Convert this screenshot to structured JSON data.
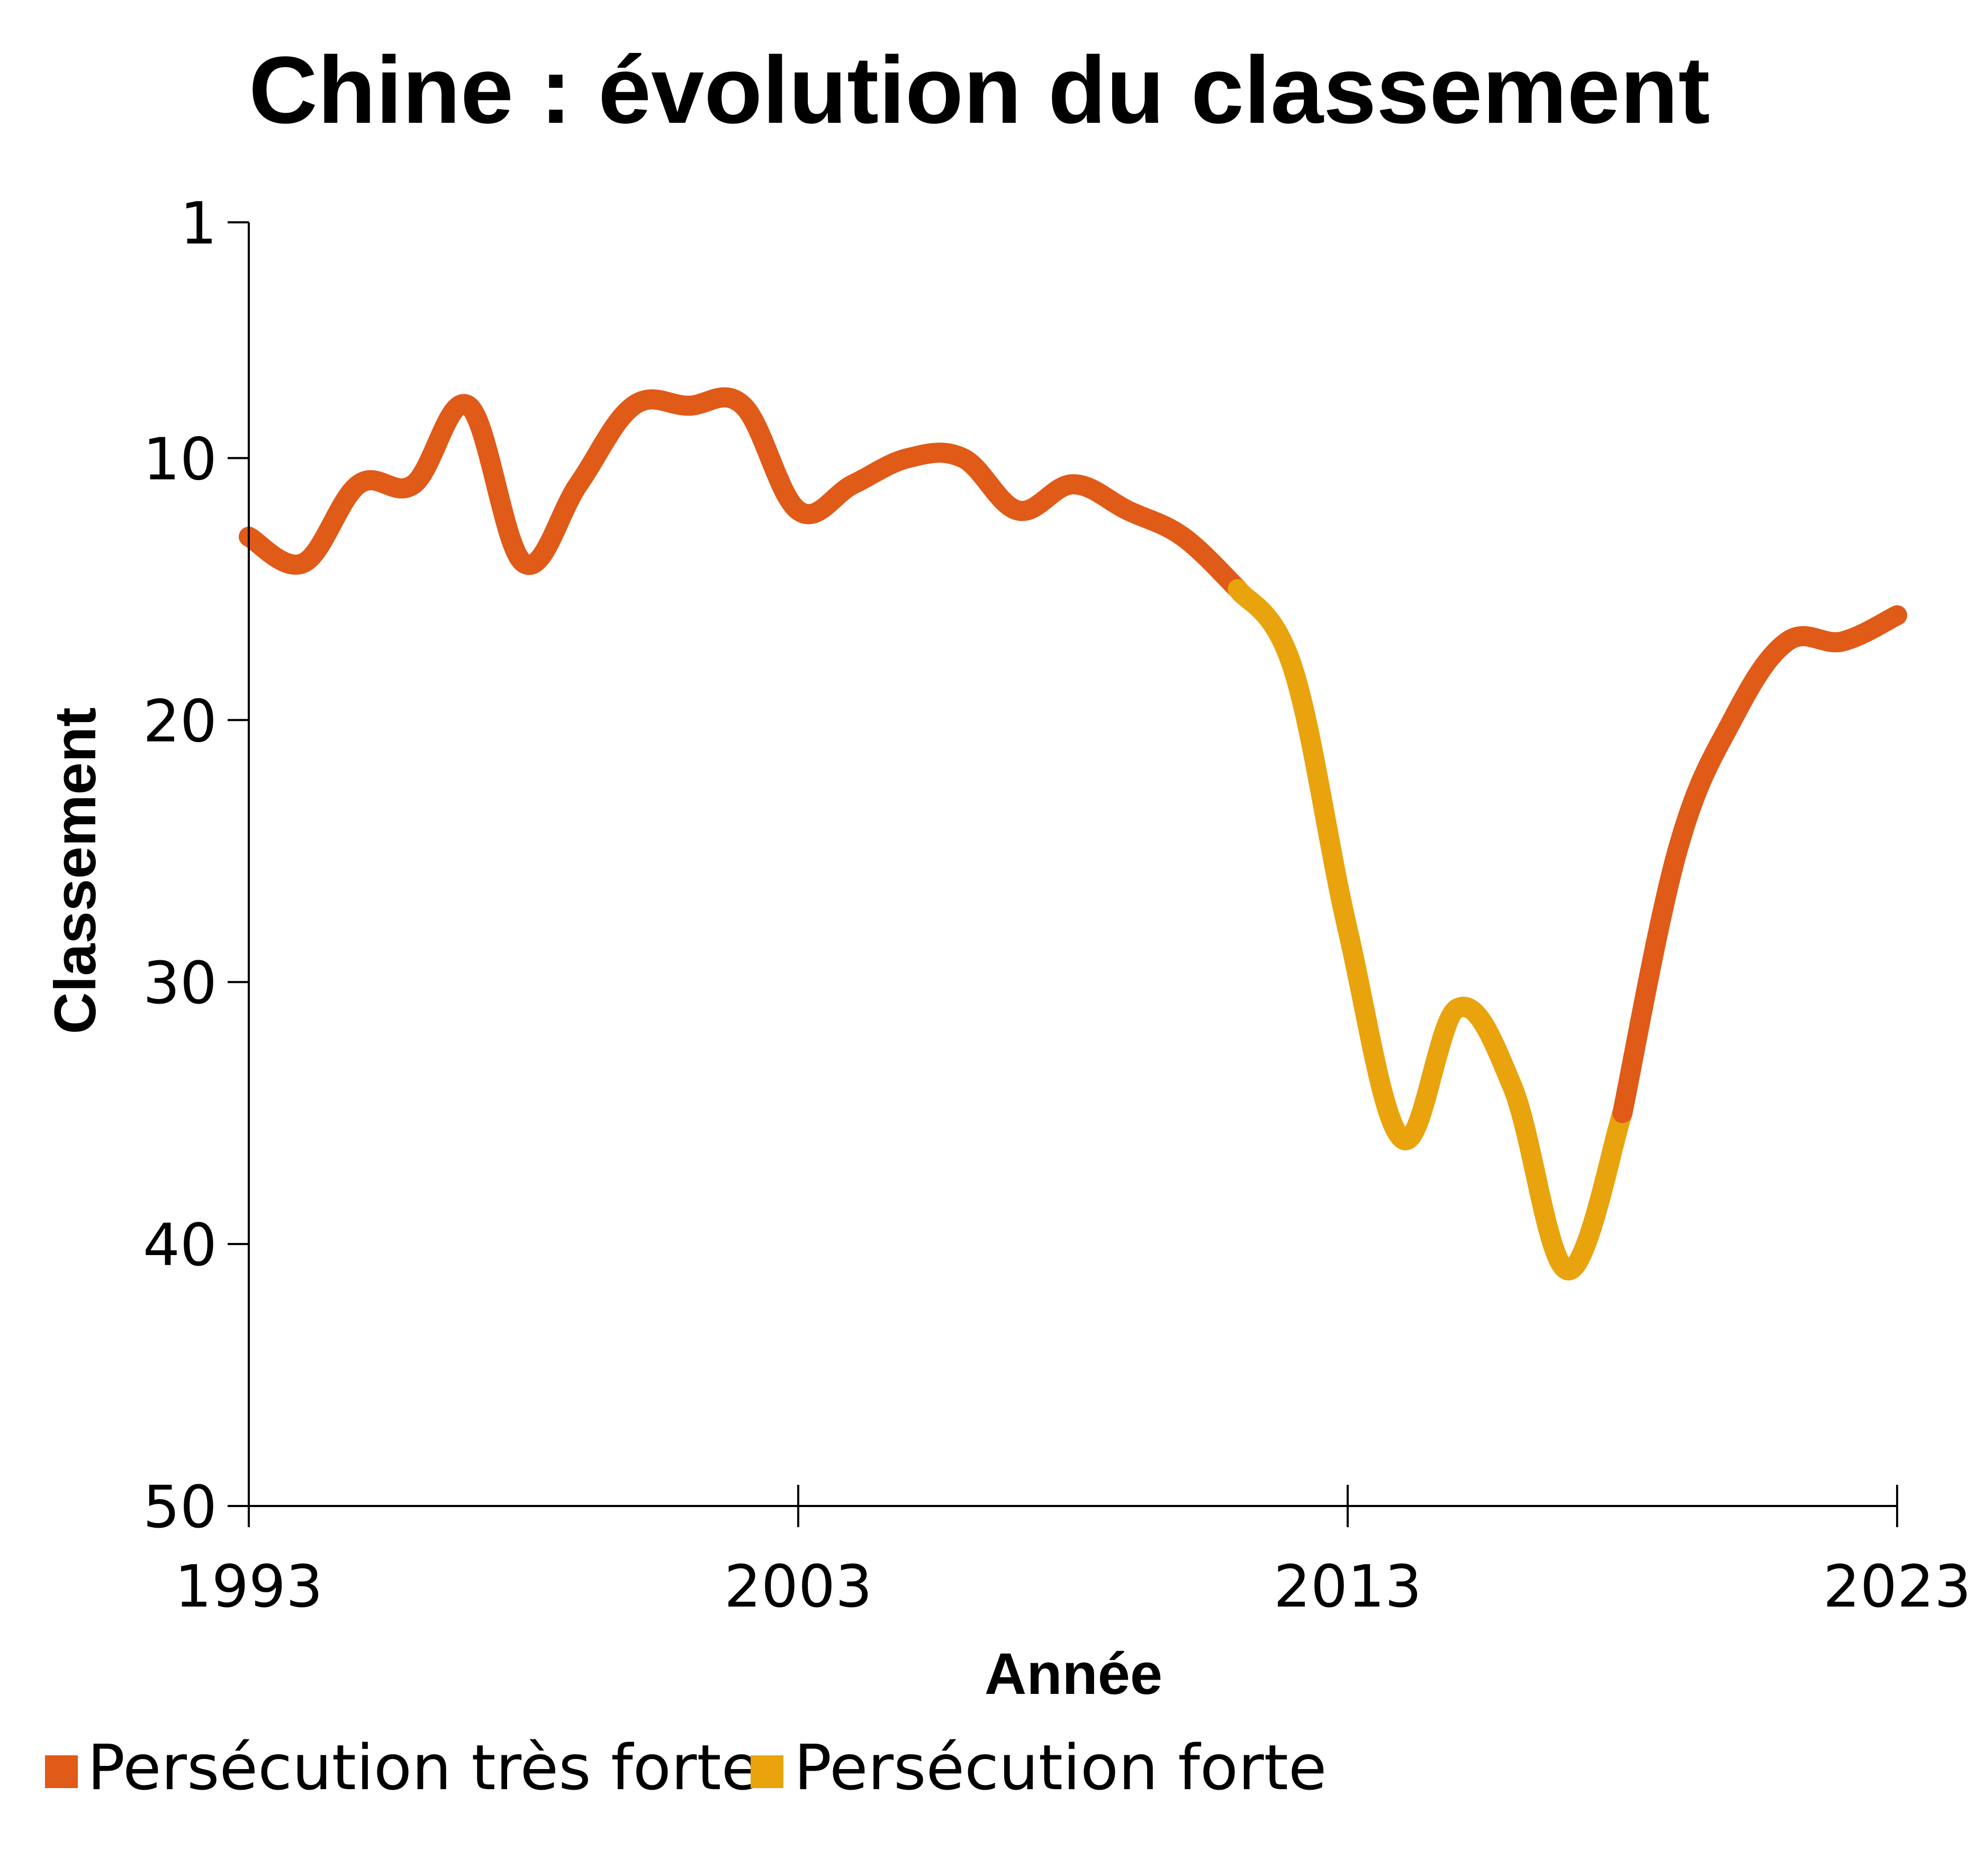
{
  "chart_data": {
    "type": "line",
    "title": "Chine : évolution du classement",
    "xlabel": "Année",
    "ylabel": "Classement",
    "x_ticks": [
      "1993",
      "2003",
      "2013",
      "2023"
    ],
    "y_ticks": [
      "1",
      "10",
      "20",
      "30",
      "40",
      "50"
    ],
    "xlim": [
      1993,
      2023
    ],
    "ylim": [
      1,
      50
    ],
    "y_inverted": true,
    "grid": false,
    "legend_position": "bottom-left",
    "colors": {
      "very_strong": "#e05a18",
      "strong": "#e9a30c",
      "axis": "#000000"
    },
    "legend": [
      {
        "label": "Persécution très forte",
        "color": "#e05a18"
      },
      {
        "label": "Persécution forte",
        "color": "#e9a30c"
      }
    ],
    "series": [
      {
        "name": "Persécution très forte",
        "color": "#e05a18",
        "x": [
          1993,
          1994,
          1995,
          1996,
          1997,
          1998,
          1999,
          2000,
          2001,
          2002,
          2003,
          2004,
          2005,
          2006,
          2007,
          2008,
          2009,
          2010,
          2011
        ],
        "y": [
          13,
          14,
          11,
          11,
          8,
          14,
          11,
          8,
          8,
          8,
          12,
          11,
          10,
          10,
          12,
          11,
          12,
          13,
          15
        ]
      },
      {
        "name": "Persécution forte",
        "color": "#e9a30c",
        "x": [
          2011,
          2012,
          2013,
          2014,
          2015,
          2016,
          2017,
          2018
        ],
        "y": [
          15,
          18,
          28,
          36,
          31,
          34,
          41,
          35
        ]
      },
      {
        "name": "Persécution très forte",
        "color": "#e05a18",
        "x": [
          2018,
          2019,
          2020,
          2021,
          2022,
          2023
        ],
        "y": [
          35,
          25,
          20,
          17,
          17,
          16
        ]
      }
    ]
  }
}
